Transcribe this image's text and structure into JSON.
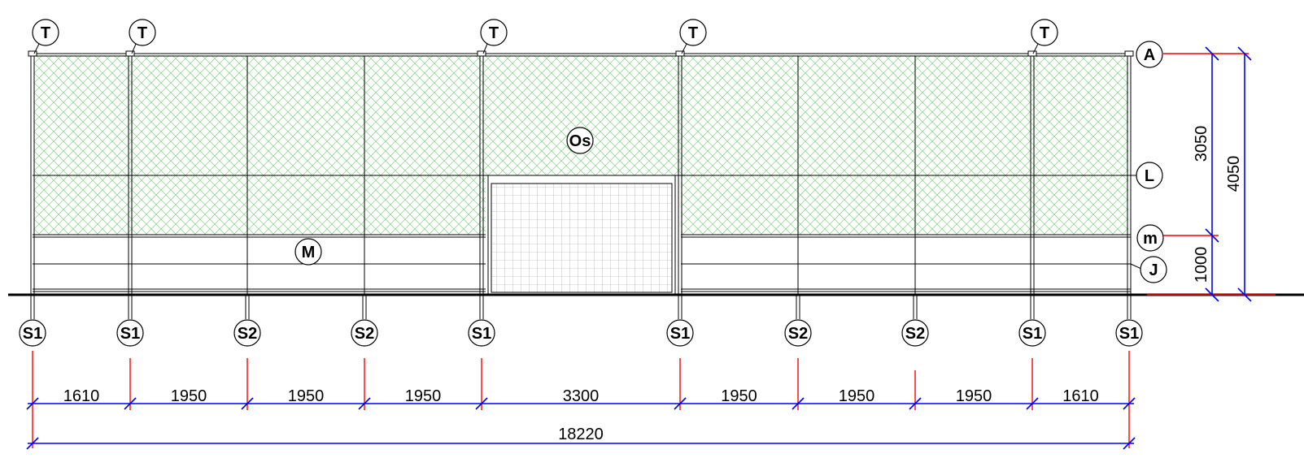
{
  "drawing": {
    "top_post_labels": [
      "T",
      "T",
      "T",
      "T",
      "T"
    ],
    "post_labels": [
      "S1",
      "S1",
      "S2",
      "S2",
      "S1",
      "S1",
      "S2",
      "S2",
      "S1",
      "S1"
    ],
    "panel_label": "Os",
    "board_label": "M",
    "side_labels": {
      "top": "A",
      "middle": "L",
      "lower": "m",
      "base": "J"
    }
  },
  "dimensions": {
    "bays": [
      "1610",
      "1950",
      "1950",
      "1950",
      "3300",
      "1950",
      "1950",
      "1950",
      "1610"
    ],
    "total": "18220",
    "vertical": {
      "upper": "3050",
      "lower": "1000",
      "total": "4050"
    }
  },
  "colors": {
    "mesh": "#7fd67f",
    "dimension_line": "#0000ff",
    "extension_line": "#ff0000",
    "outline": "#000000"
  }
}
